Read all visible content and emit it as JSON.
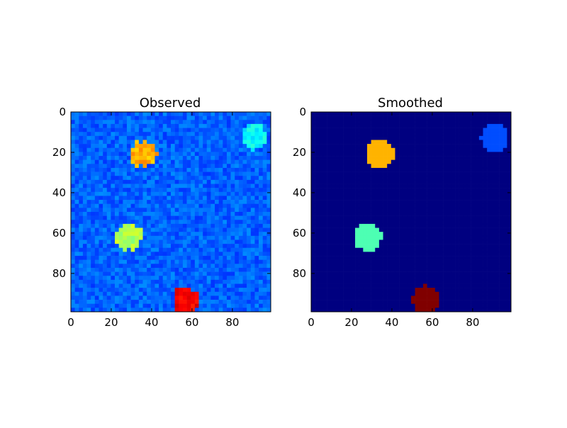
{
  "chart_data": [
    {
      "type": "heatmap",
      "title": "Observed",
      "grid": false,
      "colormap": "jet",
      "xlim": [
        0,
        99
      ],
      "ylim": [
        99,
        0
      ],
      "xticks": [
        0,
        20,
        40,
        60,
        80
      ],
      "yticks": [
        0,
        20,
        40,
        60,
        80
      ],
      "xtick_labels": [
        "0",
        "20",
        "40",
        "60",
        "80"
      ],
      "ytick_labels": [
        "0",
        "20",
        "40",
        "60",
        "80"
      ],
      "background_level": 0.22,
      "noise": true,
      "blobs": [
        {
          "cx": 36,
          "cy": 21,
          "r": 6.5,
          "level": 0.7
        },
        {
          "cx": 91,
          "cy": 12,
          "r": 6.5,
          "level": 0.38
        },
        {
          "cx": 29,
          "cy": 62,
          "r": 6.5,
          "level": 0.55
        },
        {
          "cx": 57,
          "cy": 93,
          "r": 6.5,
          "level": 0.88
        }
      ]
    },
    {
      "type": "heatmap",
      "title": "Smoothed",
      "grid": false,
      "colormap": "jet",
      "xlim": [
        0,
        99
      ],
      "ylim": [
        99,
        0
      ],
      "xticks": [
        0,
        20,
        40,
        60,
        80
      ],
      "yticks": [
        0,
        20,
        40,
        60,
        80
      ],
      "xtick_labels": [
        "0",
        "20",
        "40",
        "60",
        "80"
      ],
      "ytick_labels": [
        "0",
        "20",
        "40",
        "60",
        "80"
      ],
      "background_level": 0.0,
      "noise": false,
      "blobs": [
        {
          "cx": 34,
          "cy": 21,
          "r": 7,
          "level": 0.7
        },
        {
          "cx": 91,
          "cy": 13,
          "r": 7,
          "level": 0.2
        },
        {
          "cx": 28,
          "cy": 62,
          "r": 7,
          "level": 0.45
        },
        {
          "cx": 57,
          "cy": 93,
          "r": 7,
          "level": 1.0
        }
      ]
    }
  ]
}
